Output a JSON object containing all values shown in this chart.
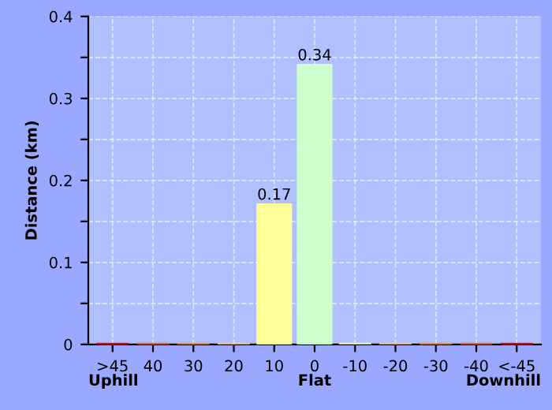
{
  "chart_data": {
    "type": "bar",
    "ylabel": "Distance (km)",
    "categories": [
      ">45",
      "40",
      "30",
      "20",
      "10",
      "0",
      "-10",
      "-20",
      "-30",
      "-40",
      "<-45"
    ],
    "values": [
      0,
      0,
      0,
      0,
      0.17,
      0.34,
      0,
      0,
      0,
      0,
      0
    ],
    "colors": [
      "#ff0000",
      "#ff6600",
      "#ff9900",
      "#ffcc66",
      "#ffff99",
      "#ccffcc",
      "#ffff99",
      "#ffcc66",
      "#ff9900",
      "#ff6600",
      "#ff0000"
    ],
    "value_labels": [
      null,
      null,
      null,
      null,
      "0.17",
      "0.34",
      null,
      null,
      null,
      null,
      null
    ],
    "ylim": [
      0,
      0.4
    ],
    "yticks": [
      0,
      {
        "value": 0.05,
        "label": null
      },
      0.1,
      {
        "value": 0.15,
        "label": null
      },
      0.2,
      {
        "value": 0.25,
        "label": null
      },
      0.3,
      {
        "value": 0.35,
        "label": null
      },
      0.4
    ],
    "grid": true,
    "annotations": [
      "Uphill",
      "Flat",
      "Downhill"
    ]
  }
}
